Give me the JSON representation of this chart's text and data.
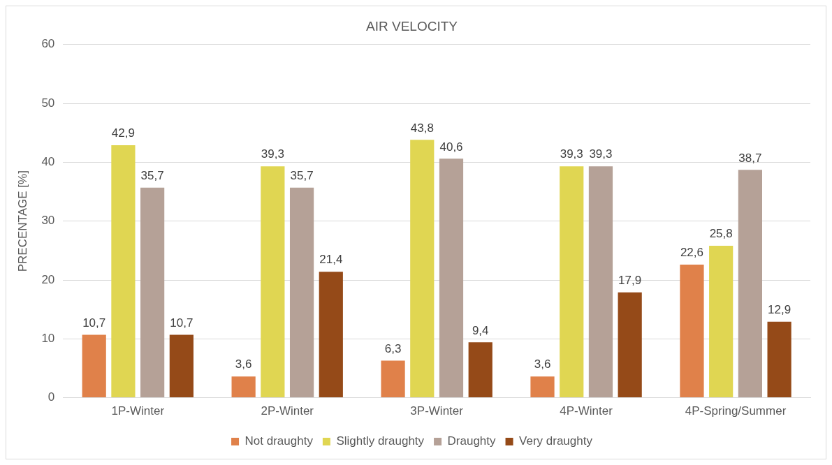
{
  "chart_data": {
    "type": "bar",
    "title": "AIR VELOCITY",
    "ylabel": "PRECENTAGE [%]",
    "categories": [
      "1P-Winter",
      "2P-Winter",
      "3P-Winter",
      "4P-Winter",
      "4P-Spring/Summer"
    ],
    "series": [
      {
        "name": "Not draughty",
        "color": "#e0814a",
        "values": [
          10.7,
          3.6,
          6.3,
          3.6,
          22.6
        ],
        "value_labels": [
          "10,7",
          "3,6",
          "6,3",
          "3,6",
          "22,6"
        ]
      },
      {
        "name": "Slightly draughty",
        "color": "#e0d652",
        "values": [
          42.9,
          39.3,
          43.8,
          39.3,
          25.8
        ],
        "value_labels": [
          "42,9",
          "39,3",
          "43,8",
          "39,3",
          "25,8"
        ]
      },
      {
        "name": "Draughty",
        "color": "#b5a197",
        "values": [
          35.7,
          35.7,
          40.6,
          39.3,
          38.7
        ],
        "value_labels": [
          "35,7",
          "35,7",
          "40,6",
          "39,3",
          "38,7"
        ]
      },
      {
        "name": "Very draughty",
        "color": "#954a18",
        "values": [
          10.7,
          21.4,
          9.4,
          17.9,
          12.9
        ],
        "value_labels": [
          "10,7",
          "21,4",
          "9,4",
          "17,9",
          "12,9"
        ]
      }
    ],
    "ylim": [
      0,
      60
    ],
    "yticks": [
      0,
      10,
      20,
      30,
      40,
      50,
      60
    ],
    "grid": "y",
    "legend": "bottom"
  }
}
